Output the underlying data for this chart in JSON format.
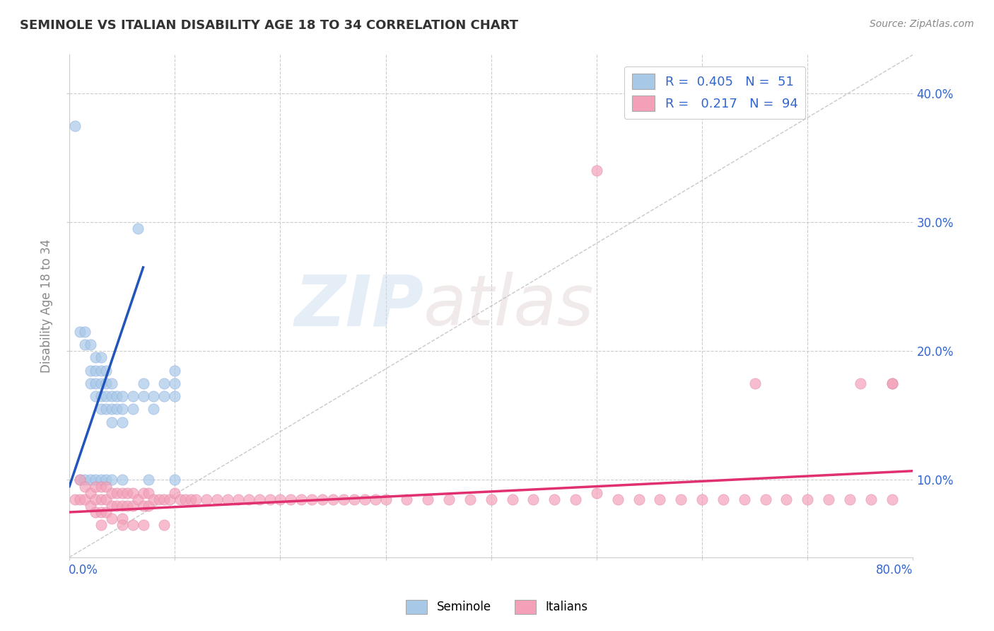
{
  "title": "SEMINOLE VS ITALIAN DISABILITY AGE 18 TO 34 CORRELATION CHART",
  "source_text": "Source: ZipAtlas.com",
  "ylabel": "Disability Age 18 to 34",
  "xlim": [
    0.0,
    0.8
  ],
  "ylim": [
    0.04,
    0.43
  ],
  "watermark_zip": "ZIP",
  "watermark_atlas": "atlas",
  "seminole_color": "#a8c8e8",
  "italian_color": "#f4a0b8",
  "seminole_line_color": "#2255bb",
  "italian_line_color": "#e03070",
  "diagonal_line_color": "#bbbbbb",
  "seminole_R": 0.405,
  "seminole_N": 51,
  "italian_R": 0.217,
  "italian_N": 94,
  "seminole_x": [
    0.005,
    0.01,
    0.01,
    0.015,
    0.015,
    0.015,
    0.02,
    0.02,
    0.02,
    0.02,
    0.025,
    0.025,
    0.025,
    0.025,
    0.025,
    0.03,
    0.03,
    0.03,
    0.03,
    0.03,
    0.03,
    0.035,
    0.035,
    0.035,
    0.035,
    0.035,
    0.04,
    0.04,
    0.04,
    0.04,
    0.04,
    0.045,
    0.045,
    0.05,
    0.05,
    0.05,
    0.06,
    0.06,
    0.065,
    0.07,
    0.07,
    0.075,
    0.08,
    0.08,
    0.09,
    0.09,
    0.1,
    0.1,
    0.1,
    0.1,
    0.05
  ],
  "seminole_y": [
    0.375,
    0.215,
    0.1,
    0.215,
    0.205,
    0.1,
    0.205,
    0.185,
    0.175,
    0.1,
    0.195,
    0.185,
    0.175,
    0.165,
    0.1,
    0.195,
    0.185,
    0.175,
    0.165,
    0.155,
    0.1,
    0.185,
    0.175,
    0.165,
    0.155,
    0.1,
    0.175,
    0.165,
    0.155,
    0.145,
    0.1,
    0.165,
    0.155,
    0.165,
    0.155,
    0.145,
    0.165,
    0.155,
    0.295,
    0.175,
    0.165,
    0.1,
    0.165,
    0.155,
    0.175,
    0.165,
    0.185,
    0.175,
    0.165,
    0.1,
    0.1
  ],
  "italian_x": [
    0.005,
    0.01,
    0.01,
    0.015,
    0.015,
    0.02,
    0.02,
    0.025,
    0.025,
    0.025,
    0.03,
    0.03,
    0.03,
    0.035,
    0.035,
    0.035,
    0.04,
    0.04,
    0.04,
    0.045,
    0.045,
    0.05,
    0.05,
    0.05,
    0.055,
    0.055,
    0.06,
    0.06,
    0.065,
    0.07,
    0.07,
    0.075,
    0.075,
    0.08,
    0.085,
    0.09,
    0.095,
    0.1,
    0.105,
    0.11,
    0.115,
    0.12,
    0.13,
    0.14,
    0.15,
    0.16,
    0.17,
    0.18,
    0.19,
    0.2,
    0.21,
    0.22,
    0.23,
    0.24,
    0.25,
    0.26,
    0.27,
    0.28,
    0.29,
    0.3,
    0.32,
    0.34,
    0.36,
    0.38,
    0.4,
    0.42,
    0.44,
    0.46,
    0.48,
    0.5,
    0.52,
    0.54,
    0.56,
    0.58,
    0.6,
    0.62,
    0.64,
    0.66,
    0.68,
    0.7,
    0.72,
    0.74,
    0.76,
    0.78,
    0.5,
    0.65,
    0.75,
    0.78,
    0.78,
    0.03,
    0.05,
    0.06,
    0.07,
    0.09
  ],
  "italian_y": [
    0.085,
    0.1,
    0.085,
    0.095,
    0.085,
    0.09,
    0.08,
    0.095,
    0.085,
    0.075,
    0.095,
    0.085,
    0.075,
    0.095,
    0.085,
    0.075,
    0.09,
    0.08,
    0.07,
    0.09,
    0.08,
    0.09,
    0.08,
    0.07,
    0.09,
    0.08,
    0.09,
    0.08,
    0.085,
    0.09,
    0.08,
    0.09,
    0.08,
    0.085,
    0.085,
    0.085,
    0.085,
    0.09,
    0.085,
    0.085,
    0.085,
    0.085,
    0.085,
    0.085,
    0.085,
    0.085,
    0.085,
    0.085,
    0.085,
    0.085,
    0.085,
    0.085,
    0.085,
    0.085,
    0.085,
    0.085,
    0.085,
    0.085,
    0.085,
    0.085,
    0.085,
    0.085,
    0.085,
    0.085,
    0.085,
    0.085,
    0.085,
    0.085,
    0.085,
    0.09,
    0.085,
    0.085,
    0.085,
    0.085,
    0.085,
    0.085,
    0.085,
    0.085,
    0.085,
    0.085,
    0.085,
    0.085,
    0.085,
    0.085,
    0.34,
    0.175,
    0.175,
    0.175,
    0.175,
    0.065,
    0.065,
    0.065,
    0.065,
    0.065
  ]
}
